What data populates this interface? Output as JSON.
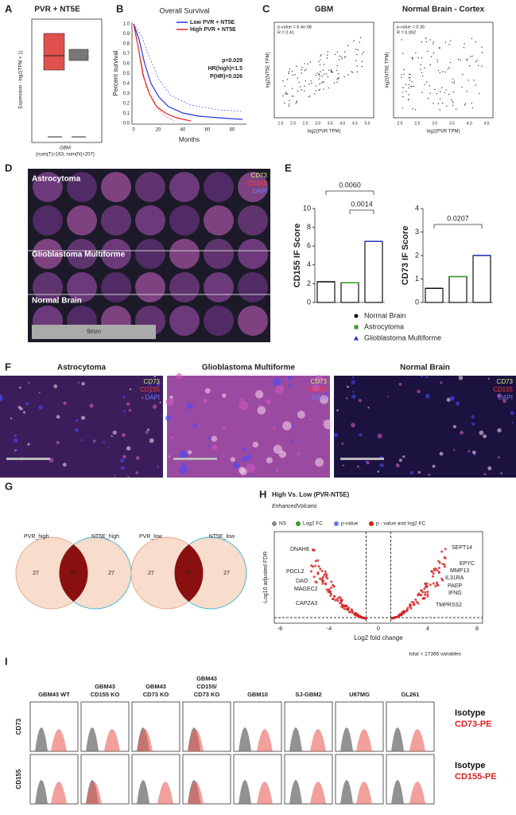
{
  "panels": {
    "A": {
      "label": "A",
      "title": "PVR + NT5E",
      "y_label": "Expression - log2(TPM + 1)",
      "x_label": "GBM",
      "note": "(num(T)=163; num(N)=207)"
    },
    "B": {
      "label": "B",
      "title": "Overall Survival",
      "legend": [
        "Low PVR + NT5E",
        "High PVR + NT5E"
      ],
      "stats": [
        "p=0.029",
        "HR(high)=1.5",
        "P(HR)=0.026"
      ],
      "y_label": "Percent survival",
      "x_label": "Months",
      "yticks": [
        "0.0",
        "0.1",
        "0.2",
        "0.3",
        "0.4",
        "0.5",
        "0.6",
        "0.7",
        "0.8",
        "0.9",
        "1.0"
      ],
      "xticks": [
        "0",
        "20",
        "40",
        "60",
        "80"
      ]
    },
    "C": {
      "label": "C",
      "plots": [
        {
          "title": "GBM",
          "stats": [
            "p-value = 6.4e-08",
            "R = 0.41"
          ],
          "xticks": [
            "1.5",
            "2.0",
            "2.5",
            "3.0",
            "3.5",
            "4.0",
            "4.5",
            "5.0"
          ]
        },
        {
          "title": "Normal Brain - Cortex",
          "stats": [
            "p-value = 0.35",
            "R = 0.092"
          ],
          "xticks": [
            "2.0",
            "2.5",
            "3.0",
            "3.5",
            "4.0",
            "4.5"
          ]
        }
      ],
      "y_label": "log2(NT5E TPM)",
      "x_label": "log2(PVR TPM)"
    },
    "D": {
      "label": "D",
      "groups": [
        "Astrocytoma",
        "Glioblastoma Multiforme",
        "Normal Brain"
      ],
      "channels": [
        "CD73",
        "CD155",
        "DAPI"
      ],
      "scale": "9mm"
    },
    "E": {
      "label": "E",
      "groups": [
        "Normal Brain",
        "Astrocytoma",
        "Glioblastoma Multiforme"
      ],
      "colors": [
        "#111111",
        "#3a9a2c",
        "#2233cc"
      ],
      "charts": [
        {
          "type": "bar",
          "y_label": "CD155 IF Score",
          "values": [
            2.2,
            2.1,
            6.5
          ],
          "ylim": [
            0,
            10
          ],
          "yticks": [
            0,
            2,
            4,
            6,
            8,
            10
          ],
          "p_values": [
            "0.0060",
            "0.0014"
          ]
        },
        {
          "type": "bar",
          "y_label": "CD73 IF Score",
          "values": [
            0.6,
            1.1,
            2.0
          ],
          "ylim": [
            0,
            4
          ],
          "yticks": [
            0,
            1,
            2,
            3,
            4
          ],
          "p_values": [
            "0.0207"
          ]
        }
      ]
    },
    "F": {
      "label": "F",
      "groups": [
        "Astrocytoma",
        "Glioblastoma Multiforme",
        "Normal Brain"
      ],
      "channels": [
        "CD73",
        "CD155",
        "DAPI"
      ]
    },
    "G": {
      "label": "G",
      "venns": [
        {
          "left": "PVR_high",
          "right": "NT5E_high",
          "counts": [
            "27",
            "46",
            "27"
          ]
        },
        {
          "left": "PVR_low",
          "right": "NT5E_low",
          "counts": [
            "27",
            "57",
            "27"
          ]
        }
      ]
    },
    "H": {
      "label": "H",
      "title": "High Vs. Low (PVR-NT5E)",
      "subtitle": "EnhancedVolcano",
      "legend": [
        "NS",
        "Log2 FC",
        "p-value",
        "p - value and log2 FC"
      ],
      "y_label": "-Log10 adjusted FDR",
      "x_label": "Log2 fold change",
      "xticks": [
        "-8",
        "-4",
        "0",
        "4",
        "8"
      ],
      "genes_left": [
        "DNAH8",
        "PDCL2",
        "DAO",
        "MAGEC2",
        "CAPZA3"
      ],
      "genes_right": [
        "SEPT14",
        "EPYC",
        "MMP13",
        "IL31RA",
        "PAEP",
        "IFNG",
        "TMPRSS2"
      ],
      "footer": "total = 17366 variables"
    },
    "I": {
      "label": "I",
      "lines": [
        [
          "GBM43 WT"
        ],
        [
          "GBM43",
          "CD155 KO"
        ],
        [
          "GBM43",
          "CD73 KO"
        ],
        [
          "GBM43",
          "CD155/",
          "CD73 KO"
        ],
        [
          "GBM10"
        ],
        [
          "SJ-GBM2"
        ],
        [
          "U87MG"
        ],
        [
          "GL261"
        ]
      ],
      "rows": [
        "CD73",
        "CD155"
      ],
      "legend": [
        [
          "Isotype",
          "CD73-PE"
        ],
        [
          "Isotype",
          "CD155-PE"
        ]
      ]
    }
  }
}
